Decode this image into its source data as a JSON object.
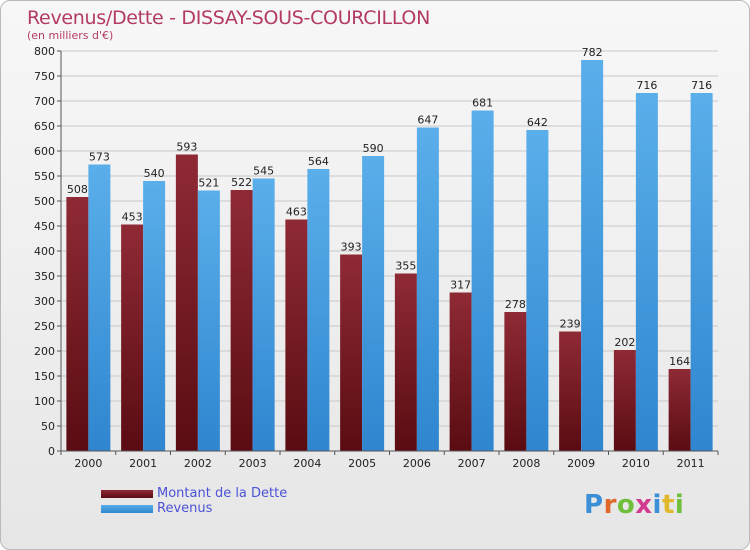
{
  "header": {
    "title": "Revenus/Dette - DISSAY-SOUS-COURCILLON",
    "subtitle": "(en milliers d'€)"
  },
  "logo": {
    "text": "Proxiti",
    "letter_colors": [
      "#3b8fd6",
      "#e0682a",
      "#6fbf3a",
      "#d23a8f",
      "#3b8fd6",
      "#e0b82a",
      "#6fbf3a"
    ]
  },
  "chart_data": {
    "type": "bar",
    "title": "Revenus/Dette - DISSAY-SOUS-COURCILLON",
    "ylabel": "(en milliers d'€)",
    "categories": [
      "2000",
      "2001",
      "2002",
      "2003",
      "2004",
      "2005",
      "2006",
      "2007",
      "2008",
      "2009",
      "2010",
      "2011"
    ],
    "series": [
      {
        "name": "Montant de la Dette",
        "color": "#8b2330",
        "values": [
          508,
          453,
          593,
          522,
          463,
          393,
          355,
          317,
          278,
          239,
          202,
          164
        ]
      },
      {
        "name": "Revenus",
        "color": "#4aa3e6",
        "values": [
          573,
          540,
          521,
          545,
          564,
          590,
          647,
          681,
          642,
          782,
          716,
          716
        ]
      }
    ],
    "ylim": [
      0,
      800
    ],
    "yticks": [
      0,
      50,
      100,
      150,
      200,
      250,
      300,
      350,
      400,
      450,
      500,
      550,
      600,
      650,
      700,
      750,
      800
    ],
    "grid": true,
    "legend_position": "bottom-left"
  }
}
